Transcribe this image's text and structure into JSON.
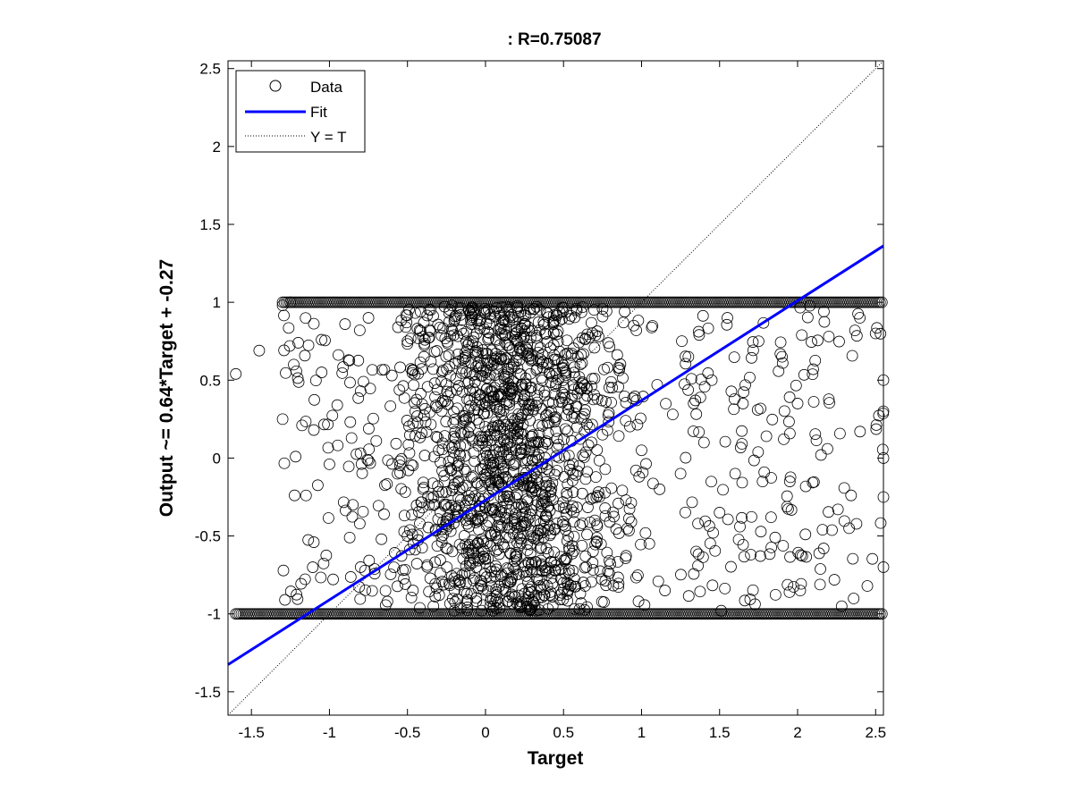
{
  "chart_data": {
    "type": "scatter",
    "title": ": R=0.75087",
    "xlabel": "Target",
    "ylabel": "Output ~= 0.64*Target + -0.27",
    "xlim": [
      -1.65,
      2.55
    ],
    "ylim": [
      -1.65,
      2.55
    ],
    "x_ticks": [
      -1.5,
      -1,
      -0.5,
      0,
      0.5,
      1,
      1.5,
      2,
      2.5
    ],
    "x_tick_labels": [
      "-1.5",
      "-1",
      "-0.5",
      "0",
      "0.5",
      "1",
      "1.5",
      "2",
      "2.5"
    ],
    "y_ticks": [
      -1.5,
      -1,
      -0.5,
      0,
      0.5,
      1,
      1.5,
      2,
      2.5
    ],
    "y_tick_labels": [
      "-1.5",
      "-1",
      "-0.5",
      "0",
      "0.5",
      "1",
      "1.5",
      "2",
      "2.5"
    ],
    "grid": false,
    "legend": {
      "position": "top-left",
      "entries": [
        {
          "name": "Data",
          "style": "circle-marker",
          "color": "#000000"
        },
        {
          "name": "Fit",
          "style": "solid-line",
          "color": "#0000ff"
        },
        {
          "name": "Y = T",
          "style": "dotted-line",
          "color": "#000000"
        }
      ]
    },
    "series": [
      {
        "name": "Data",
        "marker": "circle",
        "color": "#000000",
        "points": [
          [
            -1.6,
            0.54
          ],
          [
            -1.45,
            0.69
          ],
          [
            -1.3,
            0.25
          ],
          [
            -1.3,
            0.98
          ],
          [
            -1.25,
            1.0
          ],
          [
            -1.2,
            0.74
          ],
          [
            -1.15,
            -0.24
          ],
          [
            -1.1,
            0.18
          ],
          [
            -1.1,
            -0.54
          ],
          [
            -1.05,
            0.55
          ],
          [
            -1.0,
            -0.04
          ],
          [
            -0.95,
            0.34
          ],
          [
            -0.9,
            0.86
          ],
          [
            -0.85,
            -0.3
          ],
          [
            -0.8,
            0.43
          ],
          [
            -0.8,
            -0.7
          ],
          [
            -0.75,
            0.9
          ],
          [
            -0.7,
            0.11
          ],
          [
            -0.65,
            -0.36
          ],
          [
            -0.6,
            0.53
          ],
          [
            -0.55,
            -0.02
          ],
          [
            -0.5,
            0.75
          ],
          [
            -0.5,
            -0.5
          ],
          [
            -0.45,
            0.3
          ],
          [
            -0.4,
            -0.2
          ],
          [
            -0.35,
            0.62
          ],
          [
            -0.3,
            0.05
          ],
          [
            -0.25,
            -0.43
          ],
          [
            -0.2,
            0.88
          ],
          [
            -0.15,
            -0.75
          ],
          [
            -0.1,
            0.2
          ],
          [
            0.0,
            0.55
          ],
          [
            0.05,
            -0.33
          ],
          [
            0.1,
            0.8
          ],
          [
            0.15,
            0.02
          ],
          [
            0.2,
            -0.62
          ],
          [
            0.25,
            0.4
          ],
          [
            0.3,
            -0.12
          ],
          [
            0.35,
            0.95
          ],
          [
            0.4,
            -0.46
          ],
          [
            0.45,
            0.25
          ],
          [
            0.5,
            -0.8
          ],
          [
            0.55,
            0.66
          ],
          [
            0.6,
            -0.05
          ],
          [
            0.65,
            0.45
          ],
          [
            0.7,
            -0.4
          ],
          [
            0.75,
            0.15
          ],
          [
            0.8,
            -0.68
          ],
          [
            0.85,
            0.58
          ],
          [
            0.9,
            -0.27
          ],
          [
            0.95,
            0.85
          ],
          [
            1.0,
            0.05
          ],
          [
            1.05,
            -0.55
          ],
          [
            1.1,
            0.47
          ],
          [
            1.15,
            -0.85
          ],
          [
            1.2,
            0.28
          ],
          [
            1.25,
            -0.1
          ],
          [
            1.3,
            0.65
          ],
          [
            1.35,
            -0.6
          ],
          [
            1.4,
            0.1
          ],
          [
            1.45,
            0.5
          ],
          [
            1.5,
            -0.35
          ],
          [
            1.55,
            0.9
          ],
          [
            1.6,
            -0.1
          ],
          [
            1.65,
            0.35
          ],
          [
            1.7,
            -0.62
          ],
          [
            1.75,
            0.75
          ],
          [
            1.8,
            0.14
          ],
          [
            1.83,
            -0.38
          ],
          [
            1.9,
            0.65
          ],
          [
            1.95,
            -0.15
          ],
          [
            2.0,
            0.35
          ],
          [
            2.05,
            -0.49
          ],
          [
            2.1,
            0.57
          ],
          [
            2.15,
            0.02
          ],
          [
            2.2,
            0.78
          ],
          [
            2.33,
            -0.45
          ],
          [
            2.4,
            0.17
          ],
          [
            2.5,
            0.8
          ],
          [
            2.55,
            0.3
          ],
          [
            2.55,
            -0.25
          ],
          [
            2.55,
            0.5
          ],
          [
            2.55,
            -0.7
          ],
          [
            2.55,
            0.0
          ]
        ]
      }
    ],
    "fit_line": {
      "name": "Fit",
      "slope": 0.64,
      "intercept": -0.27,
      "color": "#0000ff"
    },
    "reference_line": {
      "name": "Y = T",
      "slope": 1,
      "intercept": 0,
      "color": "#000000"
    },
    "saturation_bands": [
      {
        "y": 1.0,
        "x_from": -1.3,
        "x_to": 2.55
      },
      {
        "y": -1.0,
        "x_from": -1.6,
        "x_to": 2.55
      }
    ]
  }
}
